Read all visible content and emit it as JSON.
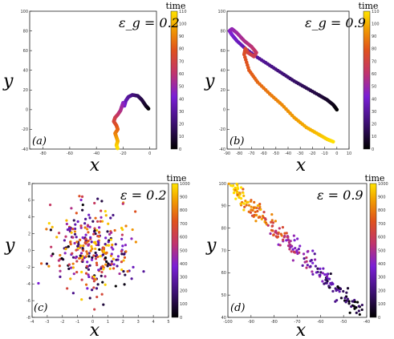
{
  "chart_data": [
    {
      "panel": "(a)",
      "type": "scatter",
      "annotation": "ε_g = 0.2",
      "xlabel": "x",
      "ylabel": "y",
      "xlim": [
        -90,
        5
      ],
      "ylim": [
        -40,
        100
      ],
      "xticks": [
        -80,
        -60,
        -40,
        -20,
        0
      ],
      "yticks": [
        -40,
        -20,
        0,
        20,
        40,
        60,
        80,
        100
      ],
      "colorbar": {
        "title": "time",
        "range": [
          0,
          110
        ],
        "ticks": [
          0,
          10,
          20,
          30,
          40,
          50,
          60,
          70,
          80,
          90,
          100,
          110
        ]
      },
      "path": [
        [
          -1,
          1
        ],
        [
          -3,
          4
        ],
        [
          -6,
          10
        ],
        [
          -9,
          14
        ],
        [
          -13,
          15
        ],
        [
          -16,
          13
        ],
        [
          -18,
          9
        ],
        [
          -19,
          4
        ],
        [
          -20,
          7
        ],
        [
          -21,
          3
        ],
        [
          -22,
          -1
        ],
        [
          -24,
          -5
        ],
        [
          -26,
          -8
        ],
        [
          -27,
          -12
        ],
        [
          -25,
          -16
        ],
        [
          -24,
          -20
        ],
        [
          -26,
          -24
        ],
        [
          -25,
          -28
        ],
        [
          -24,
          -32
        ],
        [
          -25,
          -36
        ],
        [
          -24,
          -40
        ]
      ]
    },
    {
      "panel": "(b)",
      "type": "scatter",
      "annotation": "ε_g = 0.9",
      "xlabel": "x",
      "ylabel": "y",
      "xlim": [
        -90,
        10
      ],
      "ylim": [
        -40,
        100
      ],
      "xticks": [
        -90,
        -80,
        -70,
        -60,
        -50,
        -40,
        -30,
        -20,
        -10,
        0,
        10
      ],
      "yticks": [
        -40,
        -20,
        0,
        20,
        40,
        60,
        80,
        100
      ],
      "colorbar": {
        "title": "time",
        "range": [
          0,
          110
        ],
        "ticks": [
          0,
          10,
          20,
          30,
          40,
          50,
          60,
          70,
          80,
          90,
          100,
          110
        ]
      },
      "path": [
        [
          0,
          0
        ],
        [
          -3,
          5
        ],
        [
          -8,
          10
        ],
        [
          -15,
          15
        ],
        [
          -25,
          22
        ],
        [
          -35,
          29
        ],
        [
          -45,
          37
        ],
        [
          -55,
          45
        ],
        [
          -65,
          53
        ],
        [
          -75,
          62
        ],
        [
          -82,
          70
        ],
        [
          -86,
          76
        ],
        [
          -88,
          80
        ],
        [
          -86,
          82
        ],
        [
          -82,
          78
        ],
        [
          -76,
          70
        ],
        [
          -70,
          64
        ],
        [
          -66,
          58
        ],
        [
          -68,
          54
        ],
        [
          -73,
          58
        ],
        [
          -75,
          62
        ],
        [
          -76,
          56
        ],
        [
          -72,
          40
        ],
        [
          -65,
          28
        ],
        [
          -55,
          16
        ],
        [
          -45,
          5
        ],
        [
          -35,
          -8
        ],
        [
          -25,
          -18
        ],
        [
          -15,
          -25
        ],
        [
          -8,
          -30
        ],
        [
          -2,
          -33
        ]
      ]
    },
    {
      "panel": "(c)",
      "type": "scatter",
      "annotation": "ε = 0.2",
      "xlabel": "x",
      "ylabel": "y",
      "xlim": [
        -4,
        5
      ],
      "ylim": [
        -8,
        8
      ],
      "xticks": [
        -4,
        -3,
        -2,
        -1,
        0,
        1,
        2,
        3,
        4,
        5
      ],
      "yticks": [
        -8,
        -6,
        -4,
        -2,
        0,
        2,
        4,
        6,
        8
      ],
      "colorbar": {
        "title": "time",
        "range": [
          0,
          1000
        ],
        "ticks": [
          0,
          100,
          200,
          300,
          400,
          500,
          600,
          700,
          800,
          900,
          1000
        ]
      },
      "n_points": 320,
      "distribution": {
        "center": [
          0,
          0
        ],
        "sigma": [
          1.2,
          2.4
        ]
      }
    },
    {
      "panel": "(d)",
      "type": "scatter",
      "annotation": "ε = 0.9",
      "xlabel": "x",
      "ylabel": "y",
      "xlim": [
        -100,
        -40
      ],
      "ylim": [
        40,
        100
      ],
      "xticks": [
        -100,
        -90,
        -80,
        -70,
        -60,
        -50,
        -40
      ],
      "yticks": [
        40,
        50,
        60,
        70,
        80,
        90,
        100
      ],
      "colorbar": {
        "title": "time",
        "range": [
          0,
          1000
        ],
        "ticks": [
          0,
          100,
          200,
          300,
          400,
          500,
          600,
          700,
          800,
          900,
          1000
        ]
      },
      "n_points": 260,
      "trend": {
        "from": [
          -100,
          100
        ],
        "to": [
          -42,
          42
        ]
      }
    }
  ]
}
